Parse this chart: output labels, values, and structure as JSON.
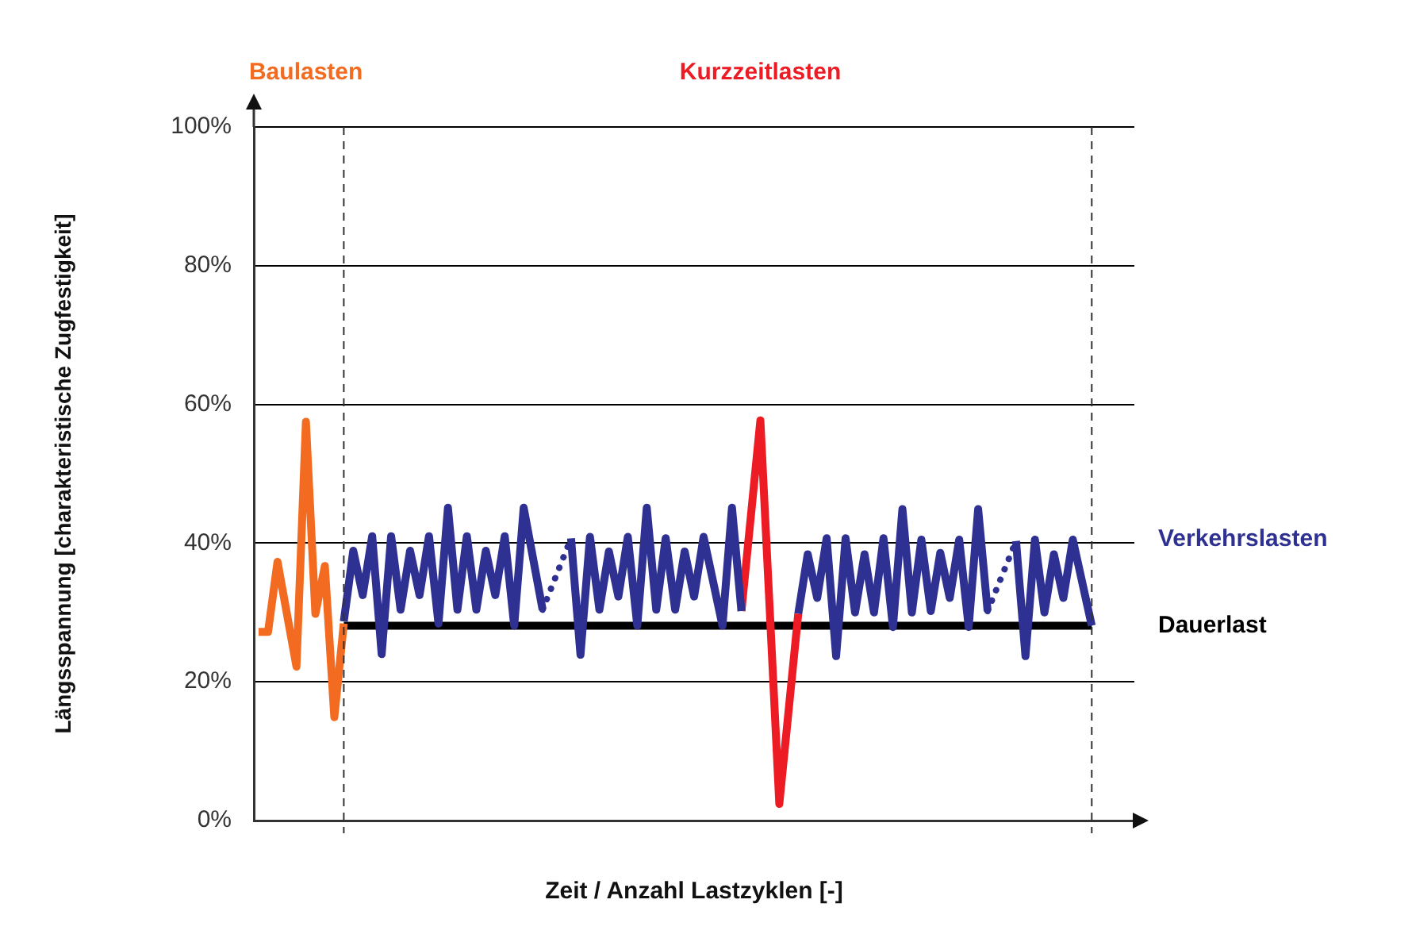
{
  "chart_data": {
    "type": "line",
    "xlabel": "Zeit / Anzahl Lastzyklen [-]",
    "ylabel": "Längsspannung [charakteristische Zugfestigkeit]",
    "categories": [
      null,
      null,
      null,
      null,
      null,
      null,
      null,
      null,
      null,
      null,
      null,
      null,
      null,
      null,
      null,
      null,
      null,
      null,
      null,
      null,
      null,
      null,
      null,
      null,
      null,
      null,
      null,
      null,
      null,
      null,
      null,
      null,
      null,
      null,
      null,
      null,
      null,
      null,
      null,
      null,
      null,
      null,
      null,
      null,
      null,
      null,
      null,
      null,
      null,
      null,
      null,
      null,
      null,
      null,
      null,
      null,
      null,
      null,
      null,
      null,
      null,
      null,
      null,
      null,
      null,
      null,
      null,
      null,
      null,
      null,
      null,
      null,
      null,
      null,
      null,
      null,
      null,
      null,
      null,
      null,
      null,
      null,
      null,
      null,
      null,
      null,
      null,
      null,
      null,
      null,
      null,
      null,
      null
    ],
    "ylim": [
      0,
      100
    ],
    "yticks": [
      {
        "value": 0,
        "label": "0%"
      },
      {
        "value": 20,
        "label": "20%"
      },
      {
        "value": 40,
        "label": "40%"
      },
      {
        "value": 60,
        "label": "60%"
      },
      {
        "value": 80,
        "label": "80%"
      },
      {
        "value": 100,
        "label": "100%"
      }
    ],
    "tick_labels": "y",
    "grid": "y",
    "marker": "none",
    "series": [
      {
        "name": "Baulasten",
        "color": "#f26b21",
        "values": [
          27.2,
          27.2,
          37.3,
          null,
          22.2,
          57.5,
          29.8,
          36.7,
          14.9,
          28.4,
          null,
          null,
          null,
          null,
          null,
          null,
          null,
          null,
          null,
          null,
          null,
          null,
          null,
          null,
          null,
          null,
          null,
          null,
          null,
          null,
          null,
          null,
          null,
          null,
          null,
          null,
          null,
          null,
          null,
          null,
          null,
          null,
          null,
          null,
          null,
          null,
          null,
          null,
          null,
          null,
          null,
          null,
          null,
          null,
          null,
          null,
          null,
          null,
          null,
          null,
          null,
          null,
          null,
          null,
          null,
          null,
          null,
          null,
          null,
          null,
          null,
          null,
          null,
          null,
          null,
          null,
          null,
          null,
          null,
          null,
          null,
          null,
          null,
          null,
          null,
          null,
          null,
          null,
          null,
          null,
          null,
          null,
          null
        ]
      },
      {
        "color": "#2e3192",
        "values": [
          null,
          null,
          null,
          null,
          null,
          null,
          null,
          null,
          null,
          28.7,
          38.9,
          32.5,
          41.0,
          24.0,
          41.0,
          30.4,
          38.9,
          32.5,
          41.0,
          28.4,
          45.1,
          30.4,
          41.0,
          30.4,
          38.9,
          32.5,
          41.0,
          28.1,
          45.1,
          null,
          30.4,
          null,
          null,
          null,
          null,
          null,
          null,
          null,
          null,
          null,
          null,
          null,
          null,
          null,
          null,
          null,
          null,
          null,
          null,
          null,
          null,
          null,
          null,
          null,
          null,
          null,
          null,
          null,
          null,
          null,
          null,
          null,
          null,
          null,
          null,
          null,
          null,
          null,
          null,
          null,
          null,
          null,
          null,
          null,
          null,
          null,
          null,
          null,
          null,
          null,
          null,
          null,
          null,
          null,
          null,
          null,
          null,
          null,
          null,
          null,
          null,
          null,
          null
        ]
      },
      {
        "color": "#2e3192",
        "line_style": "dotted",
        "values": [
          null,
          null,
          null,
          null,
          null,
          null,
          null,
          null,
          null,
          null,
          null,
          null,
          null,
          null,
          null,
          null,
          null,
          null,
          null,
          null,
          null,
          null,
          null,
          null,
          null,
          null,
          null,
          null,
          null,
          null,
          30.4,
          null,
          null,
          40.7,
          null,
          null,
          null,
          null,
          null,
          null,
          null,
          null,
          null,
          null,
          null,
          null,
          null,
          null,
          null,
          null,
          null,
          null,
          null,
          null,
          null,
          null,
          null,
          null,
          null,
          null,
          null,
          null,
          null,
          null,
          null,
          null,
          null,
          null,
          null,
          null,
          null,
          null,
          null,
          null,
          null,
          null,
          null,
          null,
          null,
          null,
          null,
          null,
          null,
          null,
          null,
          null,
          null,
          null,
          null,
          null,
          null,
          null,
          null
        ]
      },
      {
        "color": "#2e3192",
        "values": [
          null,
          null,
          null,
          null,
          null,
          null,
          null,
          null,
          null,
          null,
          null,
          null,
          null,
          null,
          null,
          null,
          null,
          null,
          null,
          null,
          null,
          null,
          null,
          null,
          null,
          null,
          null,
          null,
          null,
          null,
          null,
          null,
          null,
          40.7,
          23.9,
          40.9,
          30.4,
          38.8,
          32.3,
          40.9,
          28.1,
          45.1,
          30.4,
          40.7,
          30.4,
          38.8,
          32.3,
          40.9,
          null,
          28.1,
          45.1,
          30.2,
          null,
          null,
          null,
          null,
          null,
          null,
          null,
          null,
          null,
          null,
          null,
          null,
          null,
          null,
          null,
          null,
          null,
          null,
          null,
          null,
          null,
          null,
          null,
          null,
          null,
          null,
          null,
          null,
          null,
          null,
          null,
          null,
          null,
          null,
          null,
          null,
          null,
          null,
          null,
          null,
          null
        ]
      },
      {
        "name": "Kurzzeitlasten",
        "color": "#ed1c24",
        "values": [
          null,
          null,
          null,
          null,
          null,
          null,
          null,
          null,
          null,
          null,
          null,
          null,
          null,
          null,
          null,
          null,
          null,
          null,
          null,
          null,
          null,
          null,
          null,
          null,
          null,
          null,
          null,
          null,
          null,
          null,
          null,
          null,
          null,
          null,
          null,
          null,
          null,
          null,
          null,
          null,
          null,
          null,
          null,
          null,
          null,
          null,
          null,
          null,
          null,
          null,
          null,
          30.2,
          null,
          57.7,
          null,
          2.4,
          null,
          29.8,
          null,
          null,
          null,
          null,
          null,
          null,
          null,
          null,
          null,
          null,
          null,
          null,
          null,
          null,
          null,
          null,
          null,
          null,
          null,
          null,
          null,
          null,
          null,
          null,
          null,
          null,
          null,
          null,
          null,
          null,
          null,
          null,
          null,
          null,
          null
        ]
      },
      {
        "color": "#2e3192",
        "values": [
          null,
          null,
          null,
          null,
          null,
          null,
          null,
          null,
          null,
          null,
          null,
          null,
          null,
          null,
          null,
          null,
          null,
          null,
          null,
          null,
          null,
          null,
          null,
          null,
          null,
          null,
          null,
          null,
          null,
          null,
          null,
          null,
          null,
          null,
          null,
          null,
          null,
          null,
          null,
          null,
          null,
          null,
          null,
          null,
          null,
          null,
          null,
          null,
          null,
          null,
          null,
          null,
          null,
          null,
          null,
          null,
          null,
          29.8,
          38.4,
          32.1,
          40.7,
          23.7,
          40.7,
          30.0,
          38.4,
          30.0,
          40.7,
          27.9,
          44.9,
          30.0,
          40.5,
          30.2,
          38.6,
          32.1,
          40.5,
          27.9,
          44.9,
          30.2,
          null,
          null,
          null,
          null,
          null,
          null,
          null,
          null,
          null,
          null,
          null,
          null,
          null,
          null,
          null
        ]
      },
      {
        "color": "#2e3192",
        "line_style": "dotted",
        "values": [
          null,
          null,
          null,
          null,
          null,
          null,
          null,
          null,
          null,
          null,
          null,
          null,
          null,
          null,
          null,
          null,
          null,
          null,
          null,
          null,
          null,
          null,
          null,
          null,
          null,
          null,
          null,
          null,
          null,
          null,
          null,
          null,
          null,
          null,
          null,
          null,
          null,
          null,
          null,
          null,
          null,
          null,
          null,
          null,
          null,
          null,
          null,
          null,
          null,
          null,
          null,
          null,
          null,
          null,
          null,
          null,
          null,
          null,
          null,
          null,
          null,
          null,
          null,
          null,
          null,
          null,
          null,
          null,
          null,
          null,
          null,
          null,
          null,
          null,
          null,
          null,
          null,
          30.2,
          null,
          null,
          40.3,
          null,
          null,
          null,
          null,
          null,
          null,
          null,
          null,
          null,
          null,
          null,
          null
        ]
      },
      {
        "name": "Verkehrslasten",
        "color": "#2e3192",
        "values": [
          null,
          null,
          null,
          null,
          null,
          null,
          null,
          null,
          null,
          null,
          null,
          null,
          null,
          null,
          null,
          null,
          null,
          null,
          null,
          null,
          null,
          null,
          null,
          null,
          null,
          null,
          null,
          null,
          null,
          null,
          null,
          null,
          null,
          null,
          null,
          null,
          null,
          null,
          null,
          null,
          null,
          null,
          null,
          null,
          null,
          null,
          null,
          null,
          null,
          null,
          null,
          null,
          null,
          null,
          null,
          null,
          null,
          null,
          null,
          null,
          null,
          null,
          null,
          null,
          null,
          null,
          null,
          null,
          null,
          null,
          null,
          null,
          null,
          null,
          null,
          null,
          null,
          null,
          null,
          null,
          40.3,
          23.7,
          40.5,
          30.0,
          38.4,
          32.1,
          40.5,
          null,
          28.1,
          null,
          null,
          null,
          null
        ]
      },
      {
        "name": "Dauerlast",
        "color": "#000000",
        "values": [
          null,
          null,
          null,
          null,
          null,
          null,
          null,
          null,
          null,
          28.1,
          null,
          null,
          null,
          null,
          null,
          null,
          null,
          null,
          null,
          null,
          null,
          null,
          null,
          null,
          null,
          null,
          null,
          null,
          null,
          null,
          null,
          null,
          null,
          null,
          null,
          null,
          null,
          null,
          null,
          null,
          null,
          null,
          null,
          null,
          null,
          null,
          null,
          null,
          null,
          null,
          null,
          null,
          null,
          null,
          null,
          null,
          null,
          null,
          null,
          null,
          null,
          null,
          null,
          null,
          null,
          null,
          null,
          null,
          null,
          null,
          null,
          null,
          null,
          null,
          null,
          null,
          null,
          null,
          null,
          null,
          null,
          null,
          null,
          null,
          null,
          null,
          null,
          null,
          28.1,
          null,
          null,
          null,
          null
        ]
      }
    ]
  }
}
